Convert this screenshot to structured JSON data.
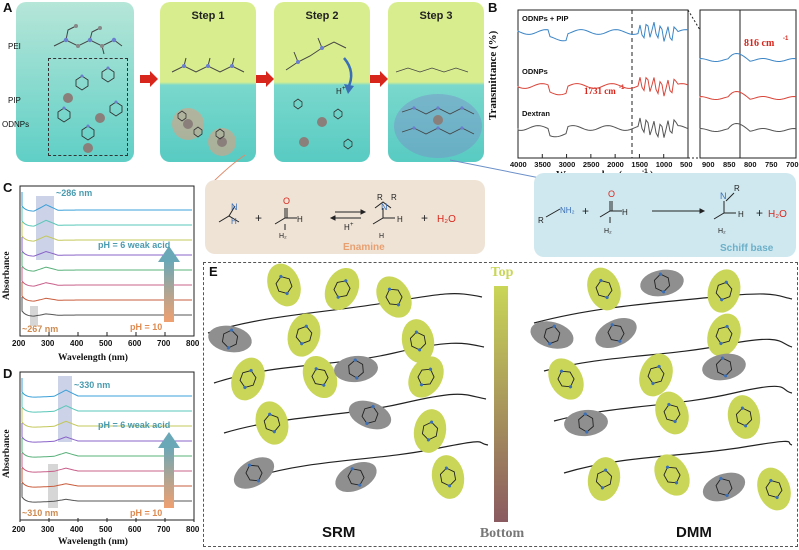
{
  "panel_a": {
    "label": "A",
    "molecule_labels": [
      "PEI",
      "PIP",
      "ODNPs"
    ],
    "steps": [
      "Step 1",
      "Step 2",
      "Step 3"
    ],
    "h_plus": "H",
    "h_plus_sup": "+"
  },
  "panel_b": {
    "label": "B",
    "ylabel": "Transmittance (%)",
    "xlabel_main": "Wave number (cm",
    "xlabel_sup": "-1",
    "xlabel_end": ")",
    "series_labels": [
      "ODNPs + PIP",
      "ODNPs",
      "Dextran"
    ],
    "annotation_1731": "1731 cm",
    "annotation_816": "816 cm",
    "annotation_sup": "-1",
    "x_ticks_main": [
      "4000",
      "3500",
      "3000",
      "2500",
      "2000",
      "1500",
      "1000",
      "500"
    ],
    "x_ticks_zoom": [
      "900",
      "850",
      "800",
      "750",
      "700"
    ]
  },
  "reactions": {
    "enamine_label": "Enamine",
    "schiff_label": "Schiff base",
    "h_plus": "H",
    "h_plus_sup": "+",
    "water": "H₂O",
    "plus": "+"
  },
  "panel_c": {
    "label": "C",
    "ylabel": "Absorbance",
    "xlabel": "Wavelength (nm)",
    "peak_high": "~286 nm",
    "peak_low": "~267 nm",
    "ph_high": "pH = 6 weak acid",
    "ph_low": "pH = 10",
    "x_ticks": [
      "200",
      "300",
      "400",
      "500",
      "600",
      "700",
      "800"
    ]
  },
  "panel_d": {
    "label": "D",
    "ylabel": "Absorbance",
    "xlabel": "Wavelength (nm)",
    "peak_high": "~330 nm",
    "peak_low": "~310 nm",
    "ph_high": "pH = 6 weak acid",
    "ph_low": "pH = 10",
    "x_ticks": [
      "200",
      "300",
      "400",
      "500",
      "600",
      "700",
      "800"
    ]
  },
  "panel_e": {
    "label": "E",
    "top": "Top",
    "bottom": "Bottom",
    "srm": "SRM",
    "dmm": "DMM"
  },
  "colors": {
    "teal_panel": "#6cd3c9",
    "step_top": "#d6ec8c",
    "reaction_tan": "#efe3d6",
    "reaction_blue": "#cfe8f0",
    "arrow_red": "#d9261c",
    "pip_yellow": "#c9d657",
    "pei_gray": "#8f8f8f",
    "ftir_blue": "#3d86c6",
    "ftir_red": "#d9463a",
    "ftir_gray": "#555555"
  }
}
